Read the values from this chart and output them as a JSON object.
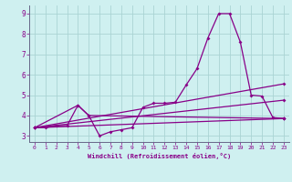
{
  "xlabel": "Windchill (Refroidissement éolien,°C)",
  "bg_color": "#cff0f0",
  "grid_color": "#aad4d4",
  "line_color": "#880088",
  "spine_color": "#666688",
  "xlim": [
    -0.5,
    23.5
  ],
  "ylim": [
    2.7,
    9.4
  ],
  "yticks": [
    3,
    4,
    5,
    6,
    7,
    8,
    9
  ],
  "xticks": [
    0,
    1,
    2,
    3,
    4,
    5,
    6,
    7,
    8,
    9,
    10,
    11,
    12,
    13,
    14,
    15,
    16,
    17,
    18,
    19,
    20,
    21,
    22,
    23
  ],
  "line1_x": [
    0,
    1,
    2,
    3,
    4,
    5,
    6,
    7,
    8,
    9,
    10,
    11,
    12,
    13,
    14,
    15,
    16,
    17,
    18,
    19,
    20,
    21,
    22,
    23
  ],
  "line1_y": [
    3.4,
    3.4,
    3.5,
    3.5,
    4.5,
    4.0,
    3.0,
    3.2,
    3.3,
    3.4,
    4.4,
    4.6,
    4.6,
    4.65,
    5.5,
    6.3,
    7.8,
    9.0,
    9.0,
    7.6,
    5.0,
    4.95,
    3.9,
    3.85
  ],
  "line2_x": [
    0,
    4,
    5,
    23
  ],
  "line2_y": [
    3.4,
    4.5,
    4.0,
    3.85
  ],
  "line3_x": [
    0,
    23
  ],
  "line3_y": [
    3.4,
    3.85
  ],
  "line4_x": [
    0,
    23
  ],
  "line4_y": [
    3.4,
    4.75
  ],
  "line5_x": [
    0,
    23
  ],
  "line5_y": [
    3.4,
    5.55
  ]
}
